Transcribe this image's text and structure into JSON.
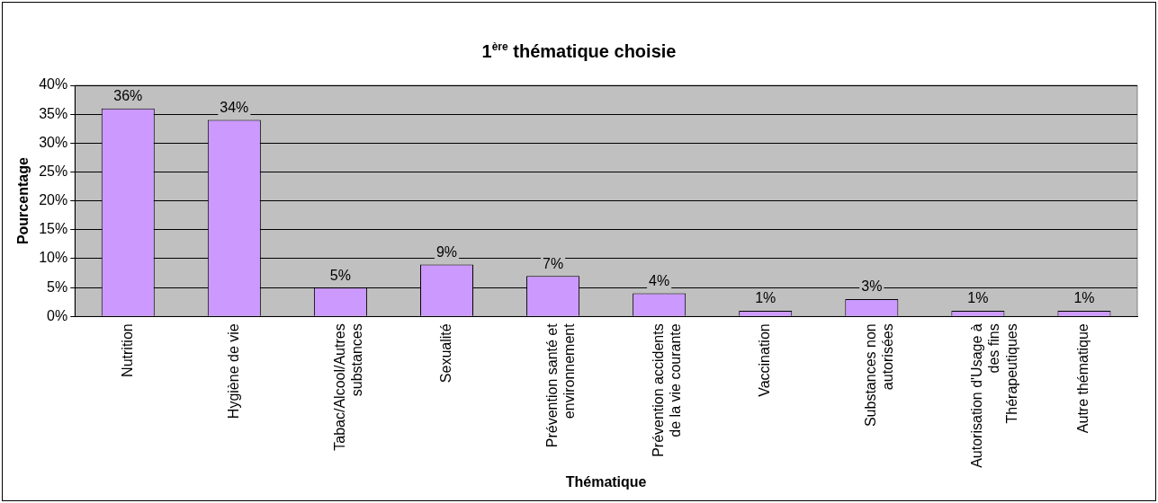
{
  "chart_data": {
    "type": "bar",
    "title": "1$^{ère}$ thématique choisie",
    "xlabel": "Thématique",
    "ylabel": "Pourcentage",
    "categories": [
      "Nutrition",
      "Hygiène de vie",
      "Tabac/Alcool/Autres substances",
      "Sexualité",
      "Prévention santé et environnement",
      "Prévention accidents de la vie courante",
      "Vaccination",
      "Substances non autorisées",
      "Autorisation d'Usage à des fins Thérapeutiques",
      "Autre thématique"
    ],
    "values": [
      36,
      34,
      5,
      9,
      7,
      4,
      1,
      3,
      1,
      1
    ],
    "value_labels": [
      "36%",
      "34%",
      "5%",
      "9%",
      "7%",
      "4%",
      "1%",
      "3%",
      "1%",
      "1%"
    ],
    "color": "#cc99ff",
    "ylim": [
      0,
      40
    ],
    "yticks": [
      {
        "value": 0,
        "label": "0%"
      },
      {
        "value": 5,
        "label": "5%"
      },
      {
        "value": 10,
        "label": "10%"
      },
      {
        "value": 15,
        "label": "15%"
      },
      {
        "value": 20,
        "label": "20%"
      },
      {
        "value": 25,
        "label": "25%"
      },
      {
        "value": 30,
        "label": "30%"
      },
      {
        "value": 35,
        "label": "35%"
      },
      {
        "value": 40,
        "label": "40%"
      }
    ],
    "grid": "y",
    "legend": false
  }
}
